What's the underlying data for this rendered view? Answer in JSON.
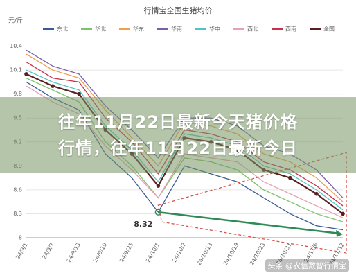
{
  "chart_data": {
    "type": "line",
    "title": "行情宝全国生猪均价",
    "y_label": "元/斤",
    "categories": [
      "24/9/1",
      "24/9/7",
      "24/9/13",
      "24/9/19",
      "24/9/25",
      "24/10/1",
      "24/10/7",
      "24/10/13",
      "24/10/19",
      "24/10/25",
      "24/10/31",
      "24/11/6",
      "24/11/12"
    ],
    "series": [
      {
        "name": "东北",
        "color": "#3b5998",
        "values": [
          9.95,
          9.75,
          9.6,
          9.05,
          8.75,
          8.32,
          8.9,
          8.8,
          8.7,
          8.5,
          8.3,
          8.15,
          8.1
        ]
      },
      {
        "name": "华北",
        "color": "#7cc36a",
        "values": [
          10.0,
          9.85,
          9.7,
          9.2,
          8.9,
          8.5,
          9.0,
          8.95,
          8.85,
          8.6,
          8.45,
          8.3,
          8.2
        ]
      },
      {
        "name": "华东",
        "color": "#f0a04b",
        "values": [
          10.3,
          10.1,
          10.0,
          9.6,
          9.25,
          8.9,
          9.45,
          9.4,
          9.3,
          9.05,
          8.95,
          8.75,
          8.45
        ]
      },
      {
        "name": "华南",
        "color": "#7a5fa8",
        "values": [
          10.35,
          10.15,
          10.05,
          9.65,
          9.35,
          9.0,
          9.5,
          9.5,
          9.4,
          9.15,
          9.05,
          8.85,
          8.5
        ]
      },
      {
        "name": "华中",
        "color": "#4fc4c4",
        "values": [
          10.1,
          9.95,
          9.85,
          9.4,
          9.1,
          8.7,
          9.3,
          9.25,
          9.15,
          8.9,
          8.8,
          8.6,
          8.35
        ]
      },
      {
        "name": "西北",
        "color": "#e8a0b0",
        "values": [
          9.9,
          9.7,
          9.55,
          9.15,
          8.85,
          8.5,
          9.05,
          9.0,
          8.95,
          8.7,
          8.55,
          8.4,
          8.25
        ]
      },
      {
        "name": "西南",
        "color": "#c8304a",
        "values": [
          10.2,
          10.0,
          9.95,
          9.5,
          9.2,
          8.8,
          9.35,
          9.3,
          9.2,
          8.95,
          8.85,
          8.65,
          8.4
        ]
      },
      {
        "name": "全国",
        "color": "#5a2020",
        "values": [
          10.05,
          9.9,
          9.8,
          9.35,
          9.05,
          8.65,
          9.25,
          9.2,
          9.1,
          8.85,
          8.75,
          8.55,
          8.3
        ]
      }
    ],
    "ylim": [
      8,
      10.5
    ],
    "yticks": [
      8,
      8.3,
      8.6,
      8.9,
      9.2,
      9.5,
      9.8,
      10.1,
      10.4
    ],
    "grid": true,
    "annotation": "8.32"
  },
  "overlay": {
    "lines": [
      "往年11月22日最新今天猪价格",
      "行情，往年11月22日最新今日"
    ]
  },
  "watermark": "头条 @农信数智行情宝"
}
